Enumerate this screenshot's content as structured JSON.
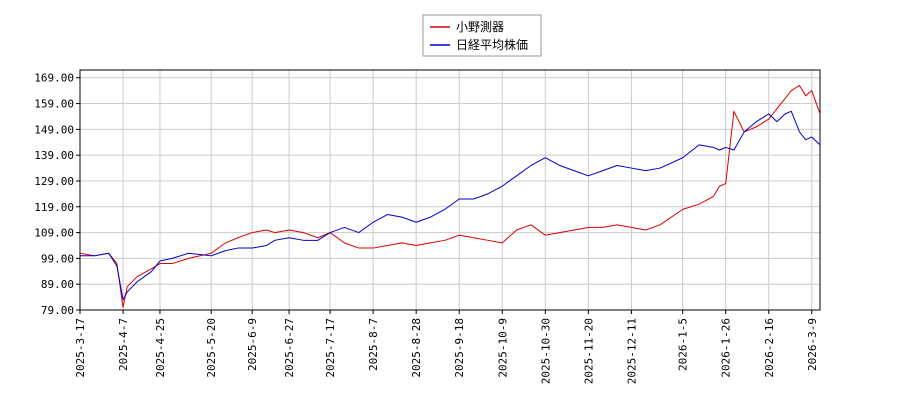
{
  "chart_data": {
    "type": "line",
    "title": "",
    "xlabel": "",
    "ylabel": "",
    "ylim": [
      79,
      172
    ],
    "grid": true,
    "legend": "top-center",
    "x_ticks": [
      "2025-3-17",
      "2025-4-7",
      "2025-4-25",
      "2025-5-20",
      "2025-6-9",
      "2025-6-27",
      "2025-7-17",
      "2025-8-7",
      "2025-8-28",
      "2025-9-18",
      "2025-10-9",
      "2025-10-30",
      "2025-11-20",
      "2025-12-11",
      "2026-1-5",
      "2026-1-26",
      "2026-2-16",
      "2026-3-9"
    ],
    "y_ticks": [
      "79.00",
      "89.00",
      "99.00",
      "109.00",
      "119.00",
      "129.00",
      "139.00",
      "149.00",
      "159.00",
      "169.00"
    ],
    "x_dates": [
      "2025-3-17",
      "2025-3-24",
      "2025-3-31",
      "2025-4-4",
      "2025-4-7",
      "2025-4-9",
      "2025-4-14",
      "2025-4-21",
      "2025-4-25",
      "2025-5-1",
      "2025-5-9",
      "2025-5-20",
      "2025-5-27",
      "2025-6-2",
      "2025-6-9",
      "2025-6-16",
      "2025-6-20",
      "2025-6-27",
      "2025-7-4",
      "2025-7-11",
      "2025-7-17",
      "2025-7-24",
      "2025-7-31",
      "2025-8-7",
      "2025-8-14",
      "2025-8-21",
      "2025-8-28",
      "2025-9-4",
      "2025-9-11",
      "2025-9-18",
      "2025-9-25",
      "2025-10-2",
      "2025-10-9",
      "2025-10-16",
      "2025-10-23",
      "2025-10-30",
      "2025-11-6",
      "2025-11-13",
      "2025-11-20",
      "2025-11-27",
      "2025-12-4",
      "2025-12-11",
      "2025-12-18",
      "2025-12-25",
      "2026-1-5",
      "2026-1-13",
      "2026-1-20",
      "2026-1-23",
      "2026-1-26",
      "2026-1-30",
      "2026-2-4",
      "2026-2-10",
      "2026-2-16",
      "2026-2-20",
      "2026-2-24",
      "2026-2-27",
      "2026-3-3",
      "2026-3-6",
      "2026-3-9",
      "2026-3-13"
    ],
    "series": [
      {
        "name": "小野測器",
        "color": "#dd0000",
        "values": [
          101,
          100,
          101,
          97,
          80,
          88,
          92,
          95,
          97,
          97,
          99,
          101,
          105,
          107,
          109,
          110,
          109,
          110,
          109,
          107,
          109,
          105,
          103,
          103,
          104,
          105,
          104,
          105,
          106,
          108,
          107,
          106,
          105,
          110,
          112,
          108,
          109,
          110,
          111,
          111,
          112,
          111,
          110,
          112,
          118,
          120,
          123,
          127,
          128,
          156,
          148,
          150,
          153,
          157,
          161,
          164,
          166,
          162,
          164,
          155
        ]
      },
      {
        "name": "日経平均株価",
        "color": "#0000cc",
        "values": [
          100,
          100,
          101,
          96,
          83,
          86,
          90,
          94,
          98,
          99,
          101,
          100,
          102,
          103,
          103,
          104,
          106,
          107,
          106,
          106,
          109,
          111,
          109,
          113,
          116,
          115,
          113,
          115,
          118,
          122,
          122,
          124,
          127,
          131,
          135,
          138,
          135,
          133,
          131,
          133,
          135,
          134,
          133,
          134,
          138,
          143,
          142,
          141,
          142,
          141,
          148,
          152,
          155,
          152,
          155,
          156,
          148,
          145,
          146,
          143
        ]
      }
    ]
  }
}
